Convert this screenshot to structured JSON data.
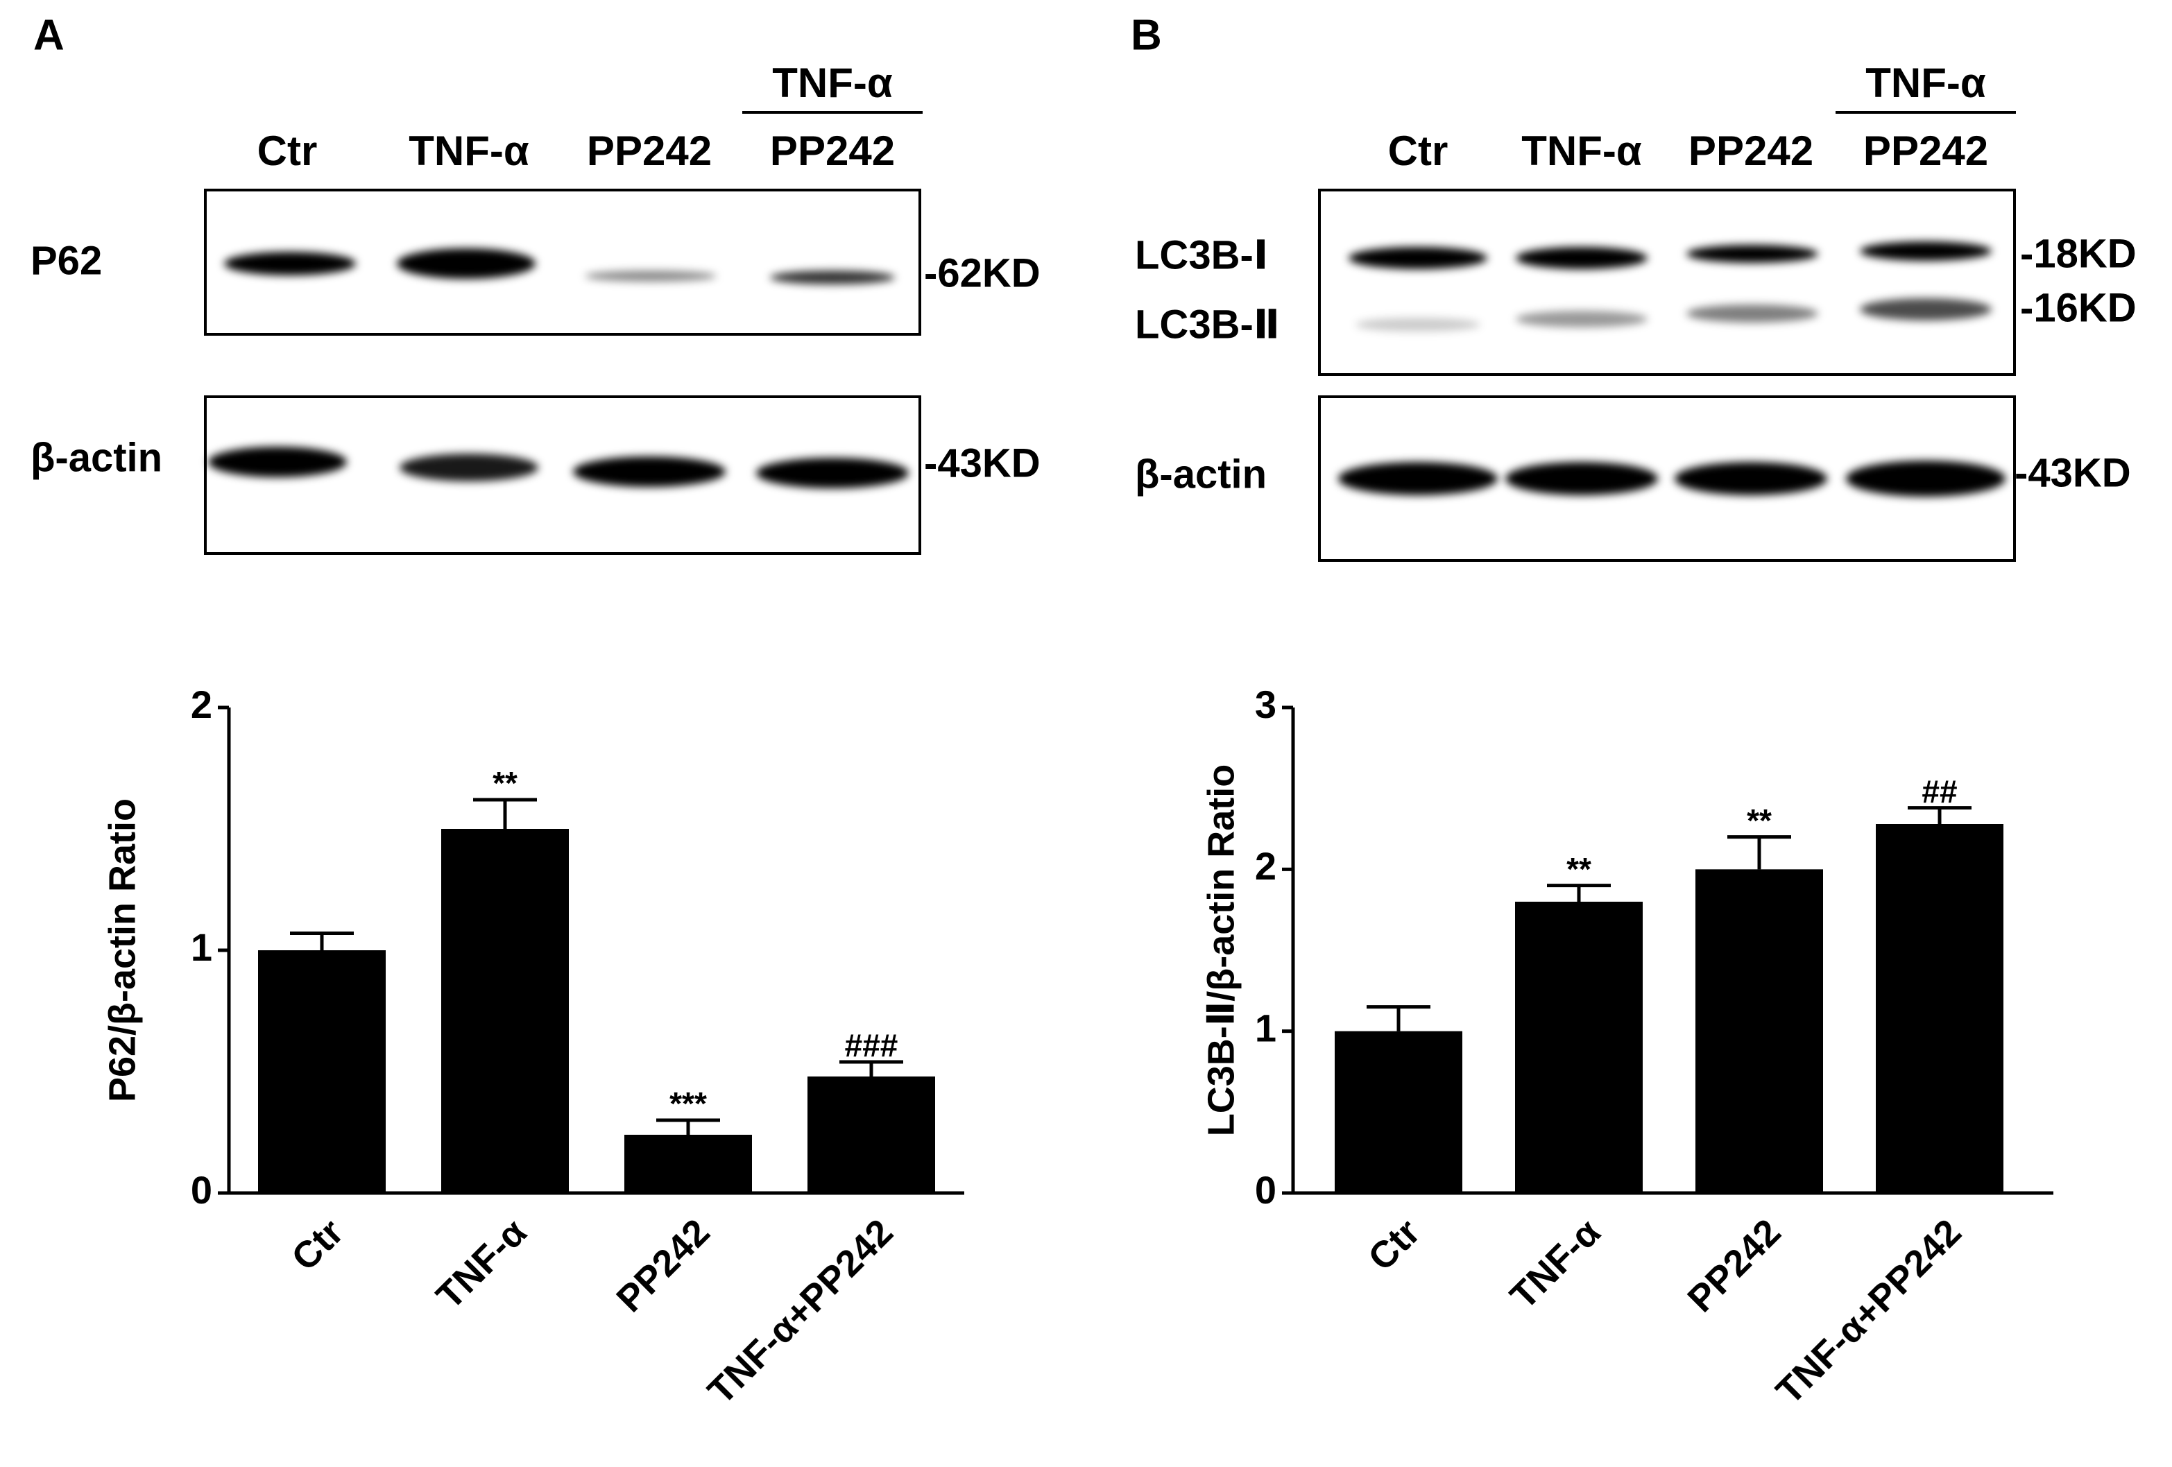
{
  "blots": [
    {
      "label": "A",
      "lanes": [
        "Ctr",
        "TNF-α",
        "PP242",
        "PP242"
      ],
      "group_label": "TNF-α",
      "rows": [
        {
          "name": "P62",
          "marker": "-62KD"
        },
        {
          "name": "β-actin",
          "marker": "-43KD"
        }
      ]
    },
    {
      "label": "B",
      "lanes": [
        "Ctr",
        "TNF-α",
        "PP242",
        "PP242"
      ],
      "group_label": "TNF-α",
      "rows": [
        {
          "name": "LC3B-Ⅰ",
          "marker": "-18KD"
        },
        {
          "name": "LC3B-Ⅱ",
          "marker": "-16KD"
        },
        {
          "name": "β-actin",
          "marker": "-43KD"
        }
      ]
    }
  ],
  "chart_data": [
    {
      "type": "bar",
      "y_label": "P62/β-actin Ratio",
      "categories": [
        "Ctr",
        "TNF-α",
        "PP242",
        "TNF-α+PP242"
      ],
      "values": [
        1.0,
        1.5,
        0.24,
        0.48
      ],
      "errors": [
        0.07,
        0.12,
        0.06,
        0.06
      ],
      "annotations": [
        null,
        "**",
        "***",
        "###"
      ],
      "color": "#000000",
      "ylim": [
        0,
        2
      ],
      "yticks": [
        0,
        1,
        2
      ]
    },
    {
      "type": "bar",
      "y_label": "LC3B-Ⅱ/β-actin Ratio",
      "categories": [
        "Ctr",
        "TNF-α",
        "PP242",
        "TNF-α+PP242"
      ],
      "values": [
        1.0,
        1.8,
        2.0,
        2.28
      ],
      "errors": [
        0.15,
        0.1,
        0.2,
        0.1
      ],
      "annotations": [
        null,
        "**",
        "**",
        "##"
      ],
      "color": "#000000",
      "ylim": [
        0,
        3
      ],
      "yticks": [
        0,
        1,
        2,
        3
      ]
    }
  ]
}
